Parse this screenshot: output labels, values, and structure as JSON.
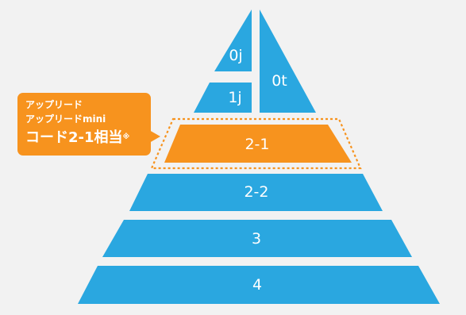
{
  "pyramid": {
    "layers": [
      "0j",
      "0t",
      "1j",
      "2-1",
      "2-2",
      "3",
      "4"
    ],
    "highlighted_layer": "2-1"
  },
  "callout": {
    "line1": "アップリード",
    "line2": "アップリードmini",
    "main": "コード2-1相当",
    "note_mark": "※"
  },
  "colors": {
    "blue": "#2aa7e0",
    "orange": "#f7931e",
    "background": "#f2f2f2",
    "label": "#ffffff"
  }
}
